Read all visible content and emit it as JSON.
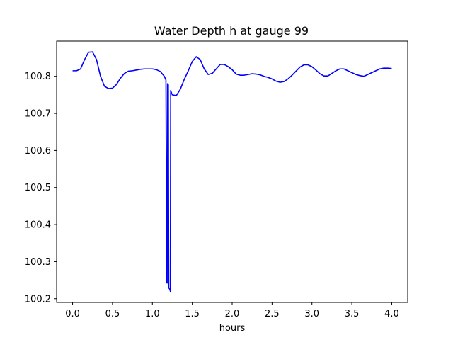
{
  "chart_data": {
    "type": "line",
    "title": "Water Depth h at gauge 99",
    "xlabel": "hours",
    "ylabel": "",
    "xlim": [
      -0.2,
      4.2
    ],
    "ylim": [
      100.19,
      100.895
    ],
    "xticks": [
      0.0,
      0.5,
      1.0,
      1.5,
      2.0,
      2.5,
      3.0,
      3.5,
      4.0
    ],
    "xtick_labels": [
      "0.0",
      "0.5",
      "1.0",
      "1.5",
      "2.0",
      "2.5",
      "3.0",
      "3.5",
      "4.0"
    ],
    "yticks": [
      100.2,
      100.3,
      100.4,
      100.5,
      100.6,
      100.7,
      100.8
    ],
    "ytick_labels": [
      "100.2",
      "100.3",
      "100.4",
      "100.5",
      "100.6",
      "100.7",
      "100.8"
    ],
    "grid": false,
    "series": [
      {
        "color": "#0000ff",
        "x": [
          0.0,
          0.05,
          0.1,
          0.15,
          0.2,
          0.25,
          0.3,
          0.35,
          0.4,
          0.45,
          0.5,
          0.55,
          0.6,
          0.65,
          0.7,
          0.75,
          0.8,
          0.85,
          0.9,
          0.95,
          1.0,
          1.05,
          1.1,
          1.15,
          1.17,
          1.18,
          1.185,
          1.19,
          1.2,
          1.205,
          1.21,
          1.22,
          1.225,
          1.23,
          1.235,
          1.24,
          1.25,
          1.3,
          1.35,
          1.4,
          1.45,
          1.5,
          1.55,
          1.6,
          1.65,
          1.7,
          1.75,
          1.8,
          1.85,
          1.9,
          1.95,
          2.0,
          2.05,
          2.1,
          2.15,
          2.2,
          2.25,
          2.3,
          2.35,
          2.4,
          2.45,
          2.5,
          2.55,
          2.6,
          2.65,
          2.7,
          2.75,
          2.8,
          2.85,
          2.9,
          2.95,
          3.0,
          3.05,
          3.1,
          3.15,
          3.2,
          3.25,
          3.3,
          3.35,
          3.4,
          3.45,
          3.5,
          3.55,
          3.6,
          3.65,
          3.7,
          3.75,
          3.8,
          3.85,
          3.9,
          3.95,
          4.0
        ],
        "y": [
          100.815,
          100.815,
          100.82,
          100.845,
          100.865,
          100.866,
          100.845,
          100.8,
          100.773,
          100.767,
          100.768,
          100.778,
          100.795,
          100.808,
          100.814,
          100.815,
          100.817,
          100.819,
          100.82,
          100.82,
          100.82,
          100.818,
          100.813,
          100.8,
          100.79,
          100.245,
          100.242,
          100.78,
          100.777,
          100.23,
          100.228,
          100.225,
          100.22,
          100.762,
          100.758,
          100.755,
          100.75,
          100.748,
          100.765,
          100.792,
          100.815,
          100.84,
          100.853,
          100.845,
          100.82,
          100.805,
          100.808,
          100.82,
          100.832,
          100.832,
          100.826,
          100.818,
          100.806,
          100.803,
          100.803,
          100.805,
          100.807,
          100.806,
          100.804,
          100.8,
          100.797,
          100.793,
          100.787,
          100.784,
          100.786,
          100.793,
          100.803,
          100.814,
          100.825,
          100.831,
          100.831,
          100.826,
          100.817,
          100.807,
          100.801,
          100.801,
          100.808,
          100.815,
          100.82,
          100.82,
          100.815,
          100.81,
          100.805,
          100.802,
          100.8,
          100.805,
          100.81,
          100.815,
          100.82,
          100.822,
          100.822,
          100.821
        ]
      }
    ]
  }
}
